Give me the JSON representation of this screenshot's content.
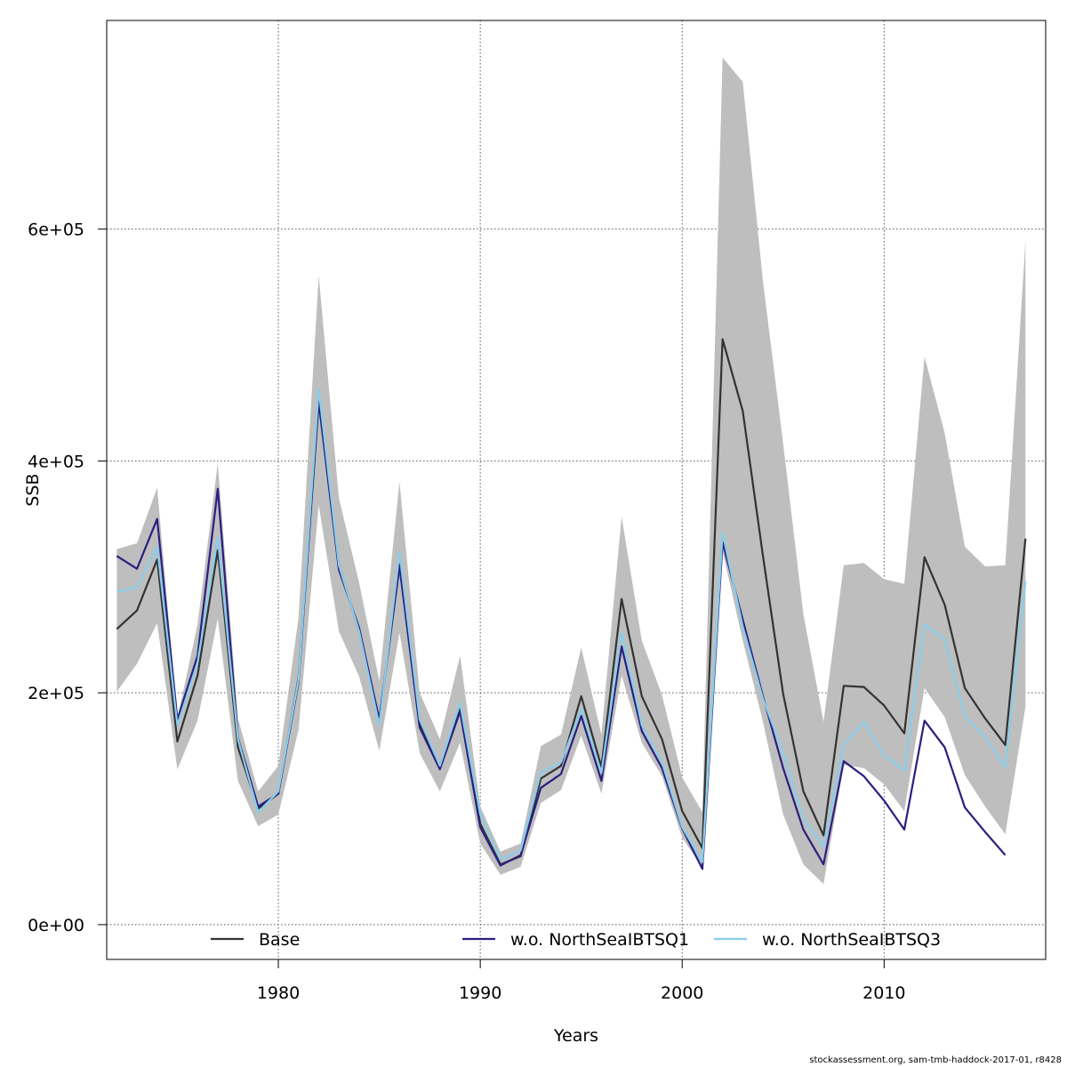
{
  "chart_data": {
    "type": "line",
    "xlabel": "Years",
    "ylabel": "SSB",
    "xlim": [
      1971.5,
      2018.0
    ],
    "ylim": [
      -30000,
      780000
    ],
    "x_ticks": [
      1980,
      1990,
      2000,
      2010
    ],
    "y_ticks": [
      0,
      200000,
      400000,
      600000
    ],
    "y_tick_labels": [
      "0e+00",
      "2e+05",
      "4e+05",
      "6e+05"
    ],
    "grid": true,
    "legend_position": "bottom",
    "band": {
      "color": "#bebebe",
      "x": [
        1972,
        1973,
        1974,
        1975,
        1976,
        1977,
        1978,
        1979,
        1980,
        1981,
        1982,
        1983,
        1984,
        1985,
        1986,
        1987,
        1988,
        1989,
        1990,
        1991,
        1992,
        1993,
        1994,
        1995,
        1996,
        1997,
        1998,
        1999,
        2000,
        2001,
        2002,
        2003,
        2004,
        2005,
        2006,
        2007,
        2008,
        2009,
        2010,
        2011,
        2012,
        2013,
        2014,
        2015,
        2016,
        2017
      ],
      "upper": [
        324000,
        329000,
        377000,
        178000,
        259000,
        398000,
        178000,
        115000,
        137000,
        265000,
        560000,
        368000,
        295000,
        210000,
        382000,
        200000,
        160000,
        232000,
        102000,
        63000,
        70000,
        154000,
        164000,
        239000,
        164000,
        352000,
        245000,
        198000,
        127000,
        97000,
        748000,
        727000,
        555000,
        415000,
        268000,
        175000,
        310000,
        312000,
        298000,
        294000,
        490000,
        424000,
        326000,
        309000,
        310000,
        590000
      ],
      "lower": [
        201000,
        225000,
        260000,
        134000,
        176000,
        264000,
        124000,
        85000,
        95000,
        168000,
        362000,
        253000,
        214000,
        150000,
        252000,
        148000,
        115000,
        157000,
        70000,
        43000,
        50000,
        105000,
        116000,
        163000,
        113000,
        215000,
        157000,
        128000,
        75000,
        49000,
        322000,
        245000,
        175000,
        95000,
        52000,
        35000,
        138000,
        135000,
        121000,
        98000,
        204000,
        179000,
        129000,
        102000,
        78000,
        188000
      ]
    },
    "series": [
      {
        "name": "Base",
        "color": "#333333",
        "x": [
          1972,
          1973,
          1974,
          1975,
          1976,
          1977,
          1978,
          1979,
          1980,
          1981,
          1982,
          1983,
          1984,
          1985,
          1986,
          1987,
          1988,
          1989,
          1990,
          1991,
          1992,
          1993,
          1994,
          1995,
          1996,
          1997,
          1998,
          1999,
          2000,
          2001,
          2002,
          2003,
          2004,
          2005,
          2006,
          2007,
          2008,
          2009,
          2010,
          2011,
          2012,
          2013,
          2014,
          2015,
          2016,
          2017
        ],
        "values": [
          255000,
          271000,
          315000,
          158000,
          215000,
          323000,
          153000,
          100000,
          113000,
          213000,
          452000,
          310000,
          253000,
          176000,
          311000,
          174000,
          135000,
          186000,
          87000,
          52000,
          59000,
          126000,
          137000,
          197000,
          136000,
          281000,
          197000,
          160000,
          98000,
          66000,
          505000,
          443000,
          318000,
          199000,
          115000,
          77000,
          206000,
          205000,
          189000,
          165000,
          317000,
          276000,
          204000,
          178000,
          155000,
          333000
        ]
      },
      {
        "name": "w.o. NorthSeaIBTSQ1",
        "color": "#2a1f7f",
        "x": [
          1972,
          1973,
          1974,
          1975,
          1976,
          1977,
          1978,
          1979,
          1980,
          1981,
          1982,
          1983,
          1984,
          1985,
          1986,
          1987,
          1988,
          1989,
          1990,
          1991,
          1992,
          1993,
          1994,
          1995,
          1996,
          1997,
          1998,
          1999,
          2000,
          2001,
          2002,
          2003,
          2004,
          2005,
          2006,
          2007,
          2008,
          2009,
          2010,
          2011,
          2012,
          2013,
          2014,
          2015,
          2016
        ],
        "values": [
          318000,
          307000,
          350000,
          177000,
          232000,
          376000,
          161000,
          102000,
          113000,
          209000,
          451000,
          306000,
          256000,
          177000,
          309000,
          170000,
          134000,
          184000,
          84000,
          51000,
          60000,
          118000,
          130000,
          180000,
          124000,
          240000,
          167000,
          135000,
          83000,
          48000,
          330000,
          263000,
          197000,
          135000,
          82000,
          52000,
          141000,
          128000,
          107000,
          82000,
          176000,
          153000,
          101000,
          80000,
          60000
        ]
      },
      {
        "name": "w.o. NorthSeaIBTSQ3",
        "color": "#87ceeb",
        "x": [
          1972,
          1973,
          1974,
          1975,
          1976,
          1977,
          1978,
          1979,
          1980,
          1981,
          1982,
          1983,
          1984,
          1985,
          1986,
          1987,
          1988,
          1989,
          1990,
          1991,
          1992,
          1993,
          1994,
          1995,
          1996,
          1997,
          1998,
          1999,
          2000,
          2001,
          2002,
          2003,
          2004,
          2005,
          2006,
          2007,
          2008,
          2009,
          2010,
          2011,
          2012,
          2013,
          2014,
          2015,
          2016,
          2017
        ],
        "values": [
          287000,
          291000,
          326000,
          172000,
          226000,
          334000,
          160000,
          97000,
          115000,
          211000,
          462000,
          310000,
          253000,
          172000,
          321000,
          177000,
          137000,
          191000,
          95000,
          56000,
          64000,
          131000,
          140000,
          186000,
          131000,
          252000,
          172000,
          140000,
          84000,
          54000,
          338000,
          257000,
          195000,
          148000,
          92000,
          67000,
          155000,
          175000,
          146000,
          133000,
          259000,
          246000,
          180000,
          162000,
          136000,
          296000
        ]
      }
    ],
    "legend": [
      "Base",
      "w.o. NorthSeaIBTSQ1",
      "w.o. NorthSeaIBTSQ3"
    ]
  },
  "footer": "stockassessment.org, sam-tmb-haddock-2017-01, r8428"
}
